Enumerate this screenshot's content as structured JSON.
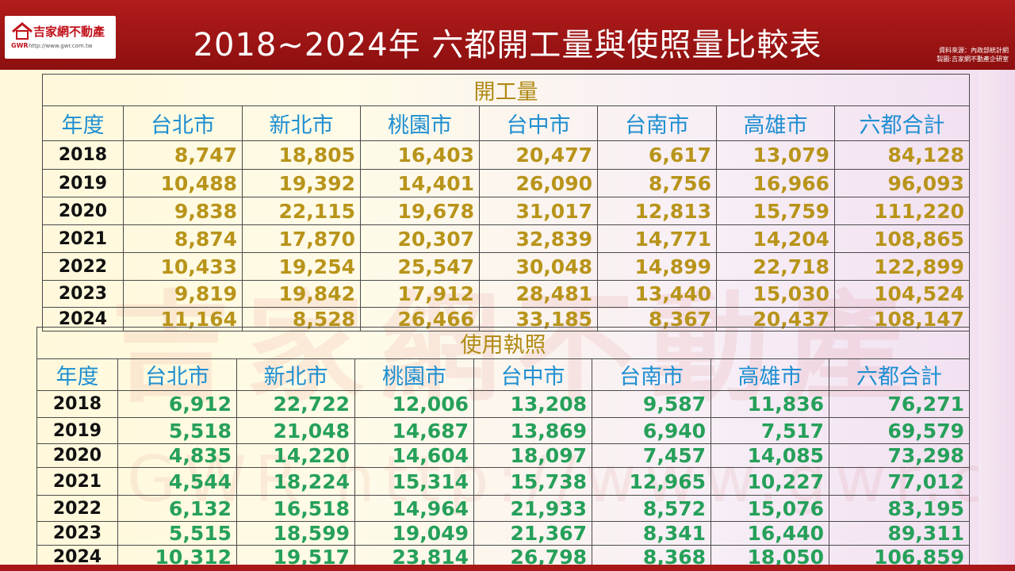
{
  "header": {
    "title": "2018~2024年 六都開工量與使照量比較表",
    "logo_cn": "吉家網不動產",
    "logo_gwr": "GWR",
    "logo_url": "http://www.gwr.com.tw",
    "source_line1": "資料來源：內政部統計網",
    "source_line2": "製圖:吉家網不動產企研室"
  },
  "watermark": {
    "text": "吉家網不動產",
    "url": "GWR http://www.gwr.com.tw"
  },
  "columns": [
    "年度",
    "台北市",
    "新北市",
    "桃園市",
    "台中市",
    "台南市",
    "高雄市",
    "六都合計"
  ],
  "start": {
    "title": "開工量",
    "rows": [
      {
        "year": "2018",
        "values": [
          "8,747",
          "18,805",
          "16,403",
          "20,477",
          "6,617",
          "13,079",
          "84,128"
        ]
      },
      {
        "year": "2019",
        "values": [
          "10,488",
          "19,392",
          "14,401",
          "26,090",
          "8,756",
          "16,966",
          "96,093"
        ]
      },
      {
        "year": "2020",
        "values": [
          "9,838",
          "22,115",
          "19,678",
          "31,017",
          "12,813",
          "15,759",
          "111,220"
        ]
      },
      {
        "year": "2021",
        "values": [
          "8,874",
          "17,870",
          "20,307",
          "32,839",
          "14,771",
          "14,204",
          "108,865"
        ]
      },
      {
        "year": "2022",
        "values": [
          "10,433",
          "19,254",
          "25,547",
          "30,048",
          "14,899",
          "22,718",
          "122,899"
        ]
      },
      {
        "year": "2023",
        "values": [
          "9,819",
          "19,842",
          "17,912",
          "28,481",
          "13,440",
          "15,030",
          "104,524"
        ]
      },
      {
        "year": "2024",
        "values": [
          "11,164",
          "8,528",
          "26,466",
          "33,185",
          "8,367",
          "20,437",
          "108,147"
        ]
      }
    ]
  },
  "license": {
    "title": "使用執照",
    "rows": [
      {
        "year": "2018",
        "values": [
          "6,912",
          "22,722",
          "12,006",
          "13,208",
          "9,587",
          "11,836",
          "76,271"
        ]
      },
      {
        "year": "2019",
        "values": [
          "5,518",
          "21,048",
          "14,687",
          "13,869",
          "6,940",
          "7,517",
          "69,579"
        ]
      },
      {
        "year": "2020",
        "values": [
          "4,835",
          "14,220",
          "14,604",
          "18,097",
          "7,457",
          "14,085",
          "73,298"
        ]
      },
      {
        "year": "2021",
        "values": [
          "4,544",
          "18,224",
          "15,314",
          "15,738",
          "12,965",
          "10,227",
          "77,012"
        ]
      },
      {
        "year": "2022",
        "values": [
          "6,132",
          "16,518",
          "14,964",
          "21,933",
          "8,572",
          "15,076",
          "83,195"
        ]
      },
      {
        "year": "2023",
        "values": [
          "5,515",
          "18,599",
          "19,049",
          "21,367",
          "8,341",
          "16,440",
          "89,311"
        ]
      },
      {
        "year": "2024",
        "values": [
          "10,312",
          "19,517",
          "23,814",
          "26,798",
          "8,368",
          "18,050",
          "106,859"
        ]
      }
    ]
  },
  "colors": {
    "header_red": "#a81818",
    "start_number": "#b8941a",
    "license_number": "#26a05a",
    "column_header": "#1f8fd1"
  }
}
